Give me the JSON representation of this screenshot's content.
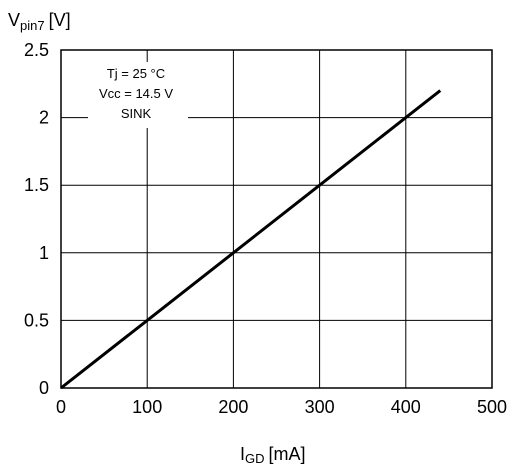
{
  "chart_data": {
    "type": "line",
    "ylabel": {
      "main": "V",
      "sub": "pin7",
      "unit": "[V]"
    },
    "xlabel": {
      "main": "I",
      "sub": "GD",
      "unit": "[mA]"
    },
    "xlim": [
      0,
      500
    ],
    "ylim": [
      0,
      2.5
    ],
    "x_ticks": [
      "0",
      "100",
      "200",
      "300",
      "400",
      "500"
    ],
    "y_ticks": [
      "0",
      "0.5",
      "1",
      "1.5",
      "2",
      "2.5"
    ],
    "grid": true,
    "annotations": [
      "Tj = 25 °C",
      "Vcc = 14.5 V",
      "SINK"
    ],
    "series": [
      {
        "x": [
          0,
          100,
          200,
          300,
          400,
          440
        ],
        "y": [
          0,
          0.5,
          1.0,
          1.5,
          2.0,
          2.2
        ]
      }
    ]
  }
}
